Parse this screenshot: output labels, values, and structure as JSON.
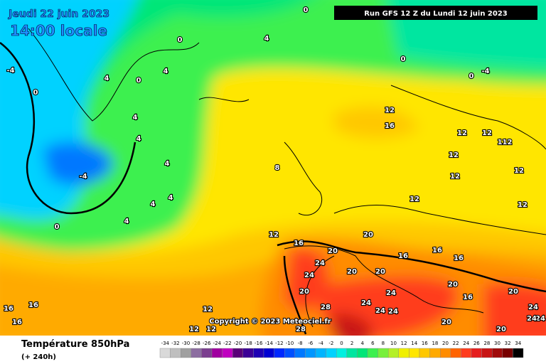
{
  "header": {
    "date": "Jeudi 22 juin 2023",
    "time": "14:00 locale",
    "run": "Run GFS 12 Z du Lundi 12 juin 2023"
  },
  "copyright": "Copyright © 2023 Meteociel.fr",
  "footer": {
    "title": "Température 850hPa",
    "lead": "(+ 240h)"
  },
  "scale": {
    "values": [
      -34,
      -32,
      -30,
      -28,
      -26,
      -24,
      -22,
      -20,
      -18,
      -16,
      -14,
      -12,
      -10,
      -8,
      -6,
      -4,
      -2,
      0,
      2,
      4,
      6,
      8,
      10,
      12,
      14,
      16,
      18,
      20,
      22,
      24,
      26,
      28,
      30,
      32,
      34
    ],
    "colors": [
      "#d9d9d9",
      "#bfbfbf",
      "#a0a0a0",
      "#8c6ea0",
      "#7b3f8f",
      "#a000a0",
      "#c000c0",
      "#5a0078",
      "#3c0096",
      "#1e00b4",
      "#0000d2",
      "#0028ff",
      "#0050ff",
      "#0078ff",
      "#0096ff",
      "#00b4ff",
      "#00d2ff",
      "#00f0e0",
      "#00e6a0",
      "#00e678",
      "#3cf050",
      "#78f03c",
      "#b4f028",
      "#f0f000",
      "#ffe600",
      "#ffc800",
      "#ffaa00",
      "#ff8c00",
      "#ff6400",
      "#ff3c1e",
      "#e61e1e",
      "#c81414",
      "#a00a0a",
      "#780000",
      "#000000"
    ]
  },
  "contour_labels": [
    "-4",
    "0",
    "0",
    "4",
    "0",
    "0",
    "-4",
    "0",
    "4",
    "4",
    "0",
    "4",
    "4",
    "4",
    "-4",
    "4",
    "4",
    "4",
    "0",
    "8",
    "12",
    "12",
    "16",
    "12",
    "12",
    "112",
    "12",
    "12",
    "12",
    "12",
    "12",
    "20",
    "16",
    "20",
    "24",
    "24",
    "20",
    "20",
    "16",
    "16",
    "16",
    "20",
    "24",
    "24",
    "24",
    "24",
    "28",
    "20",
    "16",
    "20",
    "24",
    "24",
    "24",
    "20",
    "20",
    "28",
    "12",
    "12",
    "12",
    "16",
    "16",
    "16"
  ]
}
